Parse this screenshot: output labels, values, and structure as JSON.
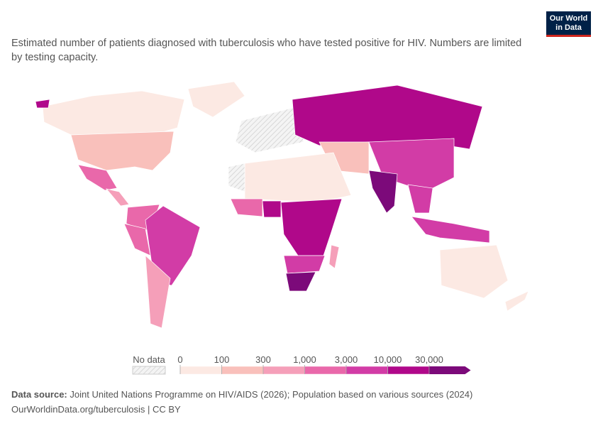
{
  "header": {
    "title": "Estimated number of patients diagnosed with tuberculosis who have tested positive for HIV. Numbers are limited by testing capacity.",
    "logo": [
      "Our World",
      "in Data"
    ]
  },
  "legend": {
    "no_data": "No data",
    "ticks": [
      0,
      100,
      300,
      {
        "value": 1000,
        "label": "1,000"
      },
      {
        "value": 3000,
        "label": "3,000"
      },
      {
        "value": 10000,
        "label": "10,000"
      },
      {
        "value": 30000,
        "label": "30,000"
      }
    ],
    "colors": [
      "#fce9e3",
      "#f9c0bb",
      "#f59fb9",
      "#e968aa",
      "#d23ca6",
      "#b0088a",
      "#7c0a7a"
    ]
  },
  "footer": {
    "source_label": "Data source:",
    "source": "Joint United Nations Programme on HIV/AIDS (2026); Population based on various sources (2024)",
    "url": "OurWorldinData.org/tuberculosis | CC BY"
  }
}
